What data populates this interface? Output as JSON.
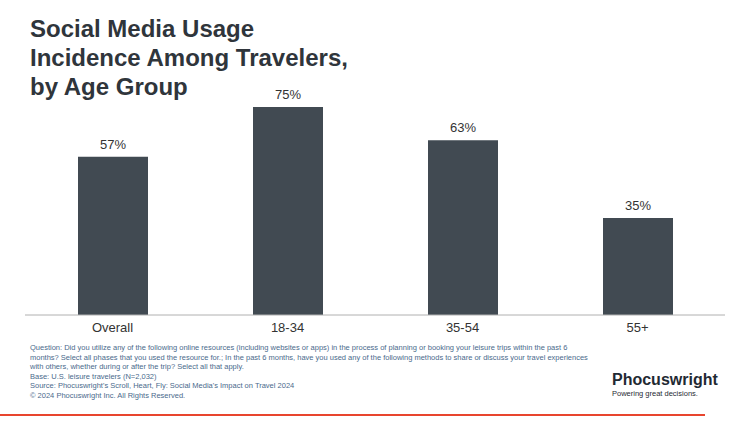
{
  "chart_data": {
    "type": "bar",
    "title": "Social Media Usage Incidence Among Travelers, by Age Group",
    "categories": [
      "Overall",
      "18-34",
      "35-54",
      "55+"
    ],
    "values": [
      57,
      75,
      63,
      35
    ],
    "value_labels": [
      "57%",
      "75%",
      "63%",
      "35%"
    ],
    "color": "#414a52",
    "ylim": [
      0,
      80
    ],
    "grid": false,
    "data_labels": true,
    "tick_labels": "x",
    "notes": [
      "Question: Did you utilize any of the following online resources (including websites or apps) in the process of planning or booking your leisure trips within the past 6 months? Select all phases that you used the resource for.; In the past 6 months, have you used any of the following methods to share or discuss your travel experiences with others, whether during or after the trip? Select all that apply.",
      "Base: U.S. leisure travelers (N=2,032)",
      "Source: Phocuswright's Scroll, Heart, Fly: Social Media's Impact on Travel 2024",
      "© 2024 Phocuswright Inc. All Rights Reserved."
    ],
    "logo": {
      "name": "Phocuswright",
      "tagline": "Powering great decisions."
    }
  }
}
